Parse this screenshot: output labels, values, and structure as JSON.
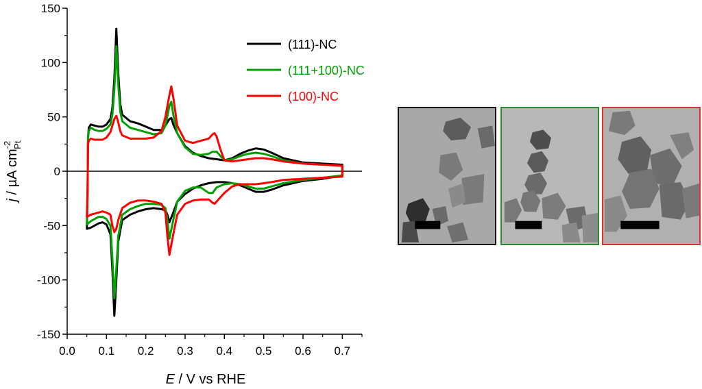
{
  "chart_data": {
    "type": "line",
    "title": "",
    "xlabel": {
      "italic": "E",
      "rest": " / V vs  RHE"
    },
    "ylabel": {
      "italic": "j",
      "rest": " / µA cm",
      "sup": "-2",
      "sub": "Pt"
    },
    "xlim": [
      0.0,
      0.75
    ],
    "ylim": [
      -150,
      150
    ],
    "xticks": [
      "0.0",
      "0.1",
      "0.2",
      "0.3",
      "0.4",
      "0.5",
      "0.6",
      "0.7"
    ],
    "yticks": [
      "150",
      "100",
      "50",
      "0",
      "-50",
      "-100",
      "-150"
    ],
    "legend_position": "top-right",
    "series": [
      {
        "name": "(111)-NC",
        "color": "#000000",
        "anodic": [
          [
            0.05,
            -53
          ],
          [
            0.052,
            -20
          ],
          [
            0.053,
            30
          ],
          [
            0.055,
            40
          ],
          [
            0.06,
            43
          ],
          [
            0.07,
            42
          ],
          [
            0.08,
            41
          ],
          [
            0.09,
            41
          ],
          [
            0.1,
            43
          ],
          [
            0.11,
            48
          ],
          [
            0.115,
            58
          ],
          [
            0.12,
            85
          ],
          [
            0.125,
            131
          ],
          [
            0.13,
            90
          ],
          [
            0.135,
            62
          ],
          [
            0.14,
            52
          ],
          [
            0.16,
            46
          ],
          [
            0.18,
            44
          ],
          [
            0.2,
            41
          ],
          [
            0.22,
            38
          ],
          [
            0.24,
            38
          ],
          [
            0.25,
            42
          ],
          [
            0.26,
            48
          ],
          [
            0.265,
            49
          ],
          [
            0.27,
            43
          ],
          [
            0.28,
            35
          ],
          [
            0.3,
            23
          ],
          [
            0.32,
            17
          ],
          [
            0.34,
            14
          ],
          [
            0.36,
            12
          ],
          [
            0.38,
            11
          ],
          [
            0.4,
            10
          ],
          [
            0.42,
            12
          ],
          [
            0.44,
            16
          ],
          [
            0.46,
            19
          ],
          [
            0.48,
            21
          ],
          [
            0.5,
            20
          ],
          [
            0.52,
            17
          ],
          [
            0.55,
            12
          ],
          [
            0.6,
            8
          ],
          [
            0.65,
            7
          ],
          [
            0.7,
            6
          ],
          [
            0.7,
            -4
          ]
        ],
        "cathodic": [
          [
            0.7,
            -4
          ],
          [
            0.65,
            -7
          ],
          [
            0.6,
            -9
          ],
          [
            0.55,
            -13
          ],
          [
            0.52,
            -17
          ],
          [
            0.5,
            -19
          ],
          [
            0.48,
            -19
          ],
          [
            0.46,
            -16
          ],
          [
            0.44,
            -13
          ],
          [
            0.42,
            -11
          ],
          [
            0.4,
            -10
          ],
          [
            0.38,
            -10
          ],
          [
            0.36,
            -11
          ],
          [
            0.34,
            -13
          ],
          [
            0.32,
            -16
          ],
          [
            0.3,
            -21
          ],
          [
            0.28,
            -28
          ],
          [
            0.27,
            -38
          ],
          [
            0.26,
            -47
          ],
          [
            0.255,
            -40
          ],
          [
            0.25,
            -36
          ],
          [
            0.24,
            -35
          ],
          [
            0.22,
            -34
          ],
          [
            0.2,
            -35
          ],
          [
            0.18,
            -37
          ],
          [
            0.16,
            -40
          ],
          [
            0.14,
            -45
          ],
          [
            0.13,
            -65
          ],
          [
            0.125,
            -100
          ],
          [
            0.12,
            -133
          ],
          [
            0.115,
            -90
          ],
          [
            0.11,
            -58
          ],
          [
            0.1,
            -49
          ],
          [
            0.09,
            -47
          ],
          [
            0.08,
            -48
          ],
          [
            0.07,
            -50
          ],
          [
            0.06,
            -52
          ],
          [
            0.05,
            -53
          ]
        ]
      },
      {
        "name": "(111+100)-NC",
        "color": "#00a000",
        "anodic": [
          [
            0.05,
            -49
          ],
          [
            0.052,
            -20
          ],
          [
            0.053,
            30
          ],
          [
            0.055,
            37
          ],
          [
            0.06,
            40
          ],
          [
            0.07,
            38
          ],
          [
            0.08,
            37
          ],
          [
            0.09,
            37
          ],
          [
            0.1,
            39
          ],
          [
            0.11,
            43
          ],
          [
            0.115,
            52
          ],
          [
            0.12,
            75
          ],
          [
            0.125,
            115
          ],
          [
            0.13,
            80
          ],
          [
            0.135,
            55
          ],
          [
            0.14,
            46
          ],
          [
            0.16,
            40
          ],
          [
            0.18,
            38
          ],
          [
            0.2,
            36
          ],
          [
            0.22,
            34
          ],
          [
            0.24,
            35
          ],
          [
            0.25,
            42
          ],
          [
            0.26,
            60
          ],
          [
            0.265,
            64
          ],
          [
            0.27,
            52
          ],
          [
            0.28,
            35
          ],
          [
            0.3,
            22
          ],
          [
            0.32,
            16
          ],
          [
            0.34,
            15
          ],
          [
            0.36,
            16
          ],
          [
            0.37,
            18
          ],
          [
            0.38,
            18
          ],
          [
            0.39,
            14
          ],
          [
            0.4,
            10
          ],
          [
            0.42,
            11
          ],
          [
            0.44,
            14
          ],
          [
            0.46,
            16
          ],
          [
            0.48,
            17
          ],
          [
            0.5,
            16
          ],
          [
            0.52,
            14
          ],
          [
            0.55,
            10
          ],
          [
            0.6,
            7
          ],
          [
            0.65,
            6
          ],
          [
            0.7,
            5
          ],
          [
            0.7,
            -4
          ]
        ],
        "cathodic": [
          [
            0.7,
            -4
          ],
          [
            0.65,
            -6
          ],
          [
            0.6,
            -8
          ],
          [
            0.55,
            -11
          ],
          [
            0.52,
            -14
          ],
          [
            0.5,
            -16
          ],
          [
            0.48,
            -16
          ],
          [
            0.46,
            -14
          ],
          [
            0.44,
            -12
          ],
          [
            0.42,
            -11
          ],
          [
            0.4,
            -12
          ],
          [
            0.38,
            -15
          ],
          [
            0.37,
            -20
          ],
          [
            0.36,
            -20
          ],
          [
            0.34,
            -15
          ],
          [
            0.32,
            -15
          ],
          [
            0.3,
            -18
          ],
          [
            0.28,
            -28
          ],
          [
            0.27,
            -45
          ],
          [
            0.26,
            -62
          ],
          [
            0.255,
            -45
          ],
          [
            0.25,
            -34
          ],
          [
            0.24,
            -31
          ],
          [
            0.22,
            -30
          ],
          [
            0.2,
            -30
          ],
          [
            0.18,
            -32
          ],
          [
            0.16,
            -35
          ],
          [
            0.14,
            -40
          ],
          [
            0.13,
            -60
          ],
          [
            0.125,
            -90
          ],
          [
            0.12,
            -117
          ],
          [
            0.115,
            -80
          ],
          [
            0.11,
            -50
          ],
          [
            0.1,
            -44
          ],
          [
            0.09,
            -42
          ],
          [
            0.08,
            -42
          ],
          [
            0.07,
            -44
          ],
          [
            0.06,
            -46
          ],
          [
            0.05,
            -49
          ]
        ]
      },
      {
        "name": "(100)-NC",
        "color": "#ff0000",
        "anodic": [
          [
            0.05,
            -42
          ],
          [
            0.052,
            -15
          ],
          [
            0.053,
            25
          ],
          [
            0.055,
            28
          ],
          [
            0.06,
            30
          ],
          [
            0.07,
            29
          ],
          [
            0.08,
            29
          ],
          [
            0.09,
            29
          ],
          [
            0.1,
            31
          ],
          [
            0.11,
            36
          ],
          [
            0.12,
            48
          ],
          [
            0.125,
            51
          ],
          [
            0.13,
            45
          ],
          [
            0.135,
            37
          ],
          [
            0.14,
            33
          ],
          [
            0.16,
            30
          ],
          [
            0.18,
            30
          ],
          [
            0.2,
            30
          ],
          [
            0.22,
            31
          ],
          [
            0.24,
            37
          ],
          [
            0.25,
            50
          ],
          [
            0.26,
            70
          ],
          [
            0.265,
            78
          ],
          [
            0.27,
            68
          ],
          [
            0.28,
            42
          ],
          [
            0.3,
            28
          ],
          [
            0.32,
            26
          ],
          [
            0.34,
            28
          ],
          [
            0.36,
            30
          ],
          [
            0.37,
            34
          ],
          [
            0.375,
            35
          ],
          [
            0.38,
            32
          ],
          [
            0.39,
            20
          ],
          [
            0.4,
            10
          ],
          [
            0.42,
            9
          ],
          [
            0.44,
            10
          ],
          [
            0.46,
            11
          ],
          [
            0.48,
            12
          ],
          [
            0.5,
            12
          ],
          [
            0.52,
            11
          ],
          [
            0.55,
            9
          ],
          [
            0.6,
            7
          ],
          [
            0.65,
            6
          ],
          [
            0.7,
            5
          ],
          [
            0.7,
            -5
          ]
        ],
        "cathodic": [
          [
            0.7,
            -5
          ],
          [
            0.65,
            -6
          ],
          [
            0.6,
            -7
          ],
          [
            0.55,
            -8
          ],
          [
            0.52,
            -10
          ],
          [
            0.5,
            -11
          ],
          [
            0.48,
            -12
          ],
          [
            0.46,
            -12
          ],
          [
            0.44,
            -12
          ],
          [
            0.42,
            -14
          ],
          [
            0.4,
            -20
          ],
          [
            0.38,
            -28
          ],
          [
            0.375,
            -30
          ],
          [
            0.37,
            -29
          ],
          [
            0.36,
            -26
          ],
          [
            0.34,
            -26
          ],
          [
            0.32,
            -27
          ],
          [
            0.3,
            -30
          ],
          [
            0.28,
            -40
          ],
          [
            0.27,
            -58
          ],
          [
            0.26,
            -77
          ],
          [
            0.255,
            -60
          ],
          [
            0.25,
            -38
          ],
          [
            0.24,
            -30
          ],
          [
            0.22,
            -28
          ],
          [
            0.2,
            -27
          ],
          [
            0.18,
            -27
          ],
          [
            0.16,
            -29
          ],
          [
            0.14,
            -34
          ],
          [
            0.13,
            -45
          ],
          [
            0.125,
            -53
          ],
          [
            0.12,
            -56
          ],
          [
            0.115,
            -50
          ],
          [
            0.11,
            -40
          ],
          [
            0.1,
            -38
          ],
          [
            0.09,
            -37
          ],
          [
            0.08,
            -38
          ],
          [
            0.07,
            -39
          ],
          [
            0.06,
            -40
          ],
          [
            0.05,
            -42
          ]
        ]
      }
    ]
  },
  "micrographs": [
    {
      "border_color": "#111111",
      "tone": "#a8a8a8"
    },
    {
      "border_color": "#2e8b2e",
      "tone": "#b8b8b8"
    },
    {
      "border_color": "#e03030",
      "tone": "#b0b0b0"
    }
  ]
}
